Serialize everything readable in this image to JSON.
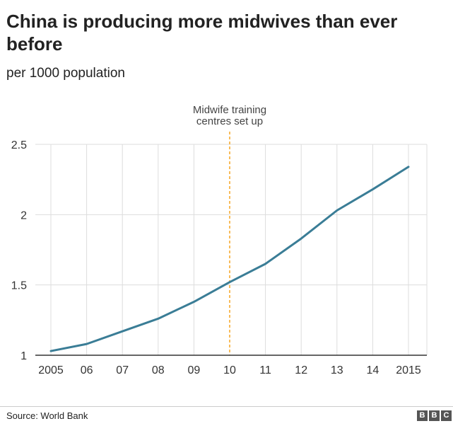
{
  "title": "China is producing more midwives than ever before",
  "subtitle": "per 1000 population",
  "source": "Source: World Bank",
  "logo_letters": [
    "B",
    "B",
    "C"
  ],
  "chart_data": {
    "type": "line",
    "title": "China is producing more midwives than ever before",
    "subtitle": "per 1000 population",
    "x": [
      2005,
      2006,
      2007,
      2008,
      2009,
      2010,
      2011,
      2012,
      2013,
      2014,
      2015
    ],
    "x_tick_labels": [
      "2005",
      "06",
      "07",
      "08",
      "09",
      "10",
      "11",
      "12",
      "13",
      "14",
      "2015"
    ],
    "series": [
      {
        "values": [
          1.03,
          1.08,
          1.17,
          1.26,
          1.38,
          1.52,
          1.65,
          1.83,
          2.03,
          2.18,
          2.34
        ]
      }
    ],
    "ylim": [
      1,
      2.5
    ],
    "y_ticks": [
      1,
      1.5,
      2,
      2.5
    ],
    "y_tick_labels": [
      "1",
      "1.5",
      "2",
      "2.5"
    ],
    "grid": true,
    "annotation": {
      "x": 2010,
      "lines": [
        "Midwife training",
        "centres set up"
      ]
    },
    "colors": {
      "line": "#3a7d96",
      "annotation": "#f5a623",
      "grid": "#dddddd",
      "axis": "#333333"
    }
  }
}
